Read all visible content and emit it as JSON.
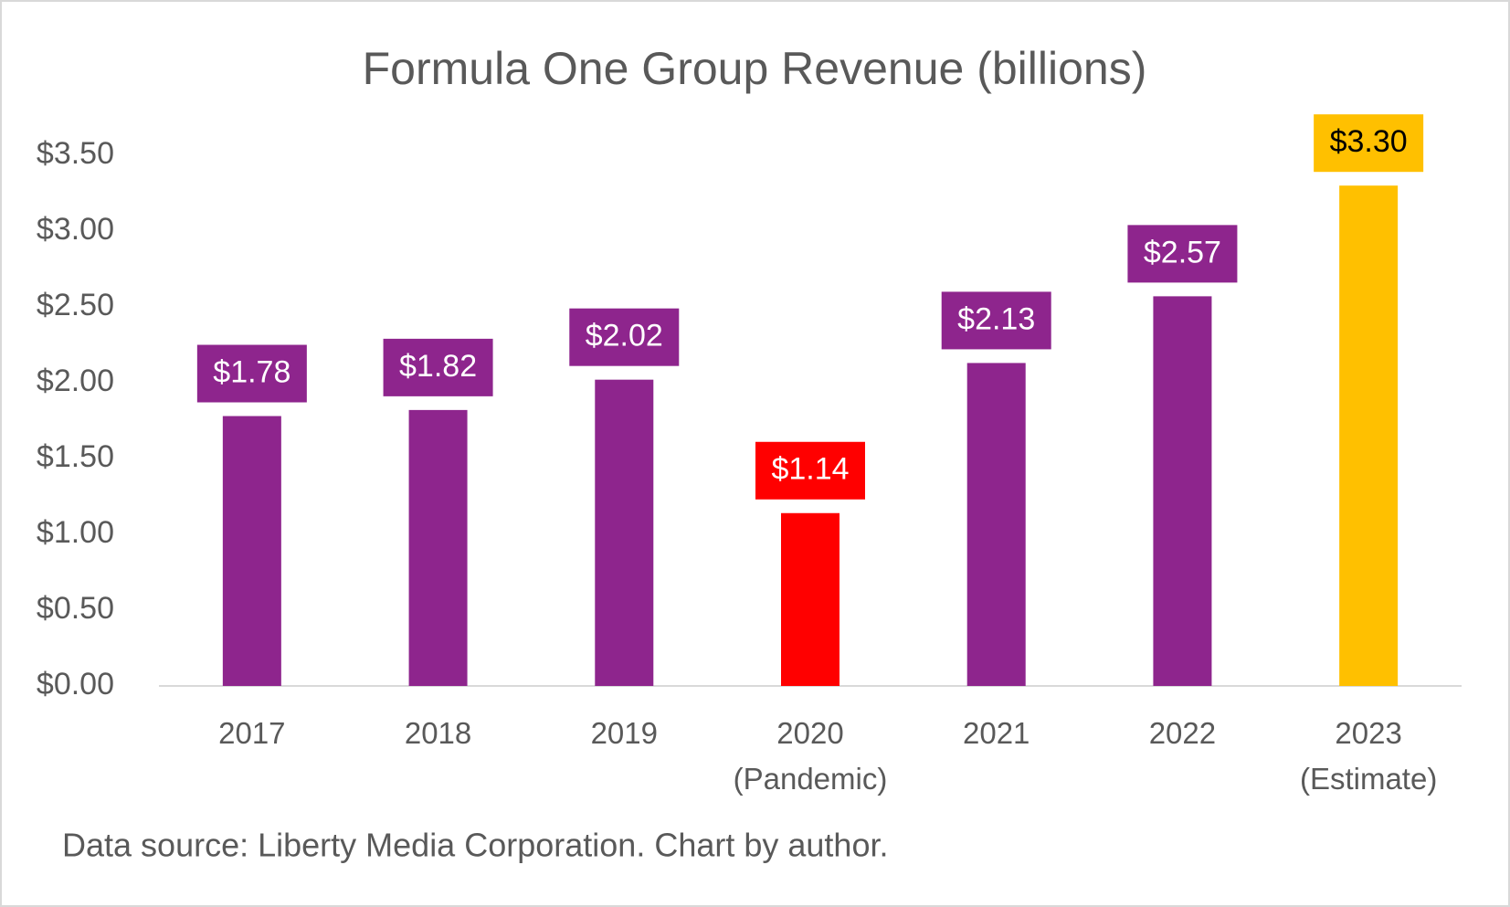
{
  "chart_data": {
    "type": "bar",
    "title": "Formula One Group Revenue (billions)",
    "categories": [
      "2017",
      "2018",
      "2019",
      "2020\n(Pandemic)",
      "2021",
      "2022",
      "2023\n(Estimate)"
    ],
    "values": [
      1.78,
      1.82,
      2.02,
      1.14,
      2.13,
      2.57,
      3.3
    ],
    "value_labels": [
      "$1.78",
      "$1.82",
      "$2.02",
      "$1.14",
      "$2.13",
      "$2.57",
      "$3.30"
    ],
    "colors": [
      "#8e258d",
      "#8e258d",
      "#8e258d",
      "#ff0000",
      "#8e258d",
      "#8e258d",
      "#ffc000"
    ],
    "label_text_colors": [
      "#ffffff",
      "#ffffff",
      "#ffffff",
      "#ffffff",
      "#ffffff",
      "#ffffff",
      "#000000"
    ],
    "ylim": [
      0,
      3.5
    ],
    "yticks": [
      {
        "value": 0,
        "label": "$0.00"
      },
      {
        "value": 0.5,
        "label": "$0.50"
      },
      {
        "value": 1,
        "label": "$1.00"
      },
      {
        "value": 1.5,
        "label": "$1.50"
      },
      {
        "value": 2,
        "label": "$2.00"
      },
      {
        "value": 2.5,
        "label": "$2.50"
      },
      {
        "value": 3,
        "label": "$3.00"
      },
      {
        "value": 3.5,
        "label": "$3.50"
      }
    ],
    "grid": false,
    "footnote": "Data source: Liberty Media Corporation. Chart by author."
  }
}
